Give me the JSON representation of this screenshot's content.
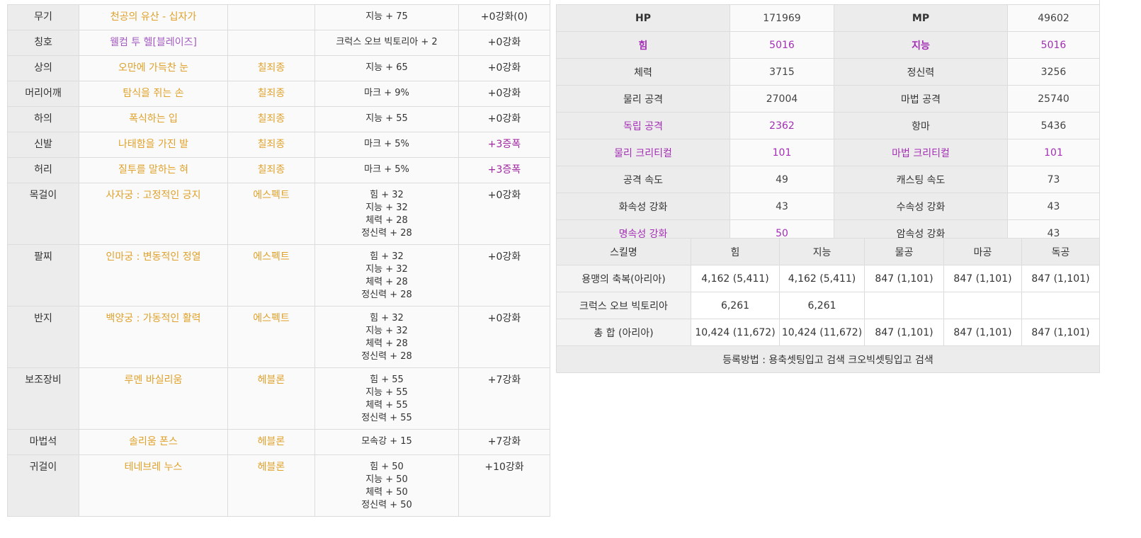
{
  "equipment": [
    {
      "slot": "무기",
      "item": "천공의 유산 - 십자가",
      "set": "",
      "options": [
        "지능 + 75"
      ],
      "upgrade": "+0강화(0)",
      "upgrade_purple": false,
      "title_style": false
    },
    {
      "slot": "칭호",
      "item": "웰컴 투 헬[블레이즈]",
      "set": "",
      "options": [
        "크럭스 오브 빅토리아 + 2"
      ],
      "upgrade": "+0강화",
      "upgrade_purple": false,
      "title_style": true
    },
    {
      "slot": "상의",
      "item": "오만에 가득찬 눈",
      "set": "칠죄종",
      "options": [
        "지능 + 65"
      ],
      "upgrade": "+0강화",
      "upgrade_purple": false,
      "title_style": false
    },
    {
      "slot": "머리어깨",
      "item": "탐식을 쥐는 손",
      "set": "칠죄종",
      "options": [
        "마크 + 9%"
      ],
      "upgrade": "+0강화",
      "upgrade_purple": false,
      "title_style": false
    },
    {
      "slot": "하의",
      "item": "폭식하는 입",
      "set": "칠죄종",
      "options": [
        "지능 + 55"
      ],
      "upgrade": "+0강화",
      "upgrade_purple": false,
      "title_style": false
    },
    {
      "slot": "신발",
      "item": "나태함을 가진 발",
      "set": "칠죄종",
      "options": [
        "마크 + 5%"
      ],
      "upgrade": "+3증폭",
      "upgrade_purple": true,
      "title_style": false
    },
    {
      "slot": "허리",
      "item": "질투를 말하는 혀",
      "set": "칠죄종",
      "options": [
        "마크 + 5%"
      ],
      "upgrade": "+3증폭",
      "upgrade_purple": true,
      "title_style": false
    },
    {
      "slot": "목걸이",
      "item": "사자궁 : 고정적인 긍지",
      "set": "에스펙트",
      "options": [
        "힘 + 32",
        "지능 + 32",
        "체력 + 28",
        "정신력 + 28"
      ],
      "upgrade": "+0강화",
      "upgrade_purple": false,
      "title_style": false
    },
    {
      "slot": "팔찌",
      "item": "인마궁 : 변동적인 정열",
      "set": "에스펙트",
      "options": [
        "힘 + 32",
        "지능 + 32",
        "체력 + 28",
        "정신력 + 28"
      ],
      "upgrade": "+0강화",
      "upgrade_purple": false,
      "title_style": false
    },
    {
      "slot": "반지",
      "item": "백양궁 : 가동적인 활력",
      "set": "에스펙트",
      "options": [
        "힘 + 32",
        "지능 + 32",
        "체력 + 28",
        "정신력 + 28"
      ],
      "upgrade": "+0강화",
      "upgrade_purple": false,
      "title_style": false
    },
    {
      "slot": "보조장비",
      "item": "루멘 바실리움",
      "set": "헤블론",
      "options": [
        "힘 + 55",
        "지능 + 55",
        "체력 + 55",
        "정신력 + 55"
      ],
      "upgrade": "+7강화",
      "upgrade_purple": false,
      "title_style": false
    },
    {
      "slot": "마법석",
      "item": "솔리움 폰스",
      "set": "헤블론",
      "options": [
        "모속강 + 15"
      ],
      "upgrade": "+7강화",
      "upgrade_purple": false,
      "title_style": false
    },
    {
      "slot": "귀걸이",
      "item": "테네브레 누스",
      "set": "헤블론",
      "options": [
        "힘 + 50",
        "지능 + 50",
        "체력 + 50",
        "정신력 + 50"
      ],
      "upgrade": "+10강화",
      "upgrade_purple": false,
      "title_style": false
    }
  ],
  "stats": [
    [
      {
        "label": "HP",
        "value": "171969",
        "hl": false,
        "bold": true
      },
      {
        "label": "MP",
        "value": "49602",
        "hl": false,
        "bold": true
      }
    ],
    [
      {
        "label": "힘",
        "value": "5016",
        "hl": true,
        "bold": true
      },
      {
        "label": "지능",
        "value": "5016",
        "hl": true,
        "bold": true
      }
    ],
    [
      {
        "label": "체력",
        "value": "3715",
        "hl": false,
        "bold": false
      },
      {
        "label": "정신력",
        "value": "3256",
        "hl": false,
        "bold": false
      }
    ],
    [
      {
        "label": "물리 공격",
        "value": "27004",
        "hl": false,
        "bold": false
      },
      {
        "label": "마법 공격",
        "value": "25740",
        "hl": false,
        "bold": false
      }
    ],
    [
      {
        "label": "독립 공격",
        "value": "2362",
        "hl": true,
        "bold": false
      },
      {
        "label": "항마",
        "value": "5436",
        "hl": false,
        "bold": false
      }
    ],
    [
      {
        "label": "물리 크리티컬",
        "value": "101",
        "hl": true,
        "bold": false
      },
      {
        "label": "마법 크리티컬",
        "value": "101",
        "hl": true,
        "bold": false
      }
    ],
    [
      {
        "label": "공격 속도",
        "value": "49",
        "hl": false,
        "bold": false
      },
      {
        "label": "캐스팅 속도",
        "value": "73",
        "hl": false,
        "bold": false
      }
    ],
    [
      {
        "label": "화속성 강화",
        "value": "43",
        "hl": false,
        "bold": false
      },
      {
        "label": "수속성 강화",
        "value": "43",
        "hl": false,
        "bold": false
      }
    ],
    [
      {
        "label": "명속성 강화",
        "value": "50",
        "hl": true,
        "bold": false
      },
      {
        "label": "암속성 강화",
        "value": "43",
        "hl": false,
        "bold": false
      }
    ]
  ],
  "skill_table": {
    "headers": [
      "스킬명",
      "힘",
      "지능",
      "물공",
      "마공",
      "독공"
    ],
    "rows": [
      [
        "용맹의 축복(아리아)",
        "4,162 (5,411)",
        "4,162 (5,411)",
        "847 (1,101)",
        "847 (1,101)",
        "847 (1,101)"
      ],
      [
        "크럭스 오브 빅토리아",
        "6,261",
        "6,261",
        "",
        "",
        ""
      ],
      [
        "총 합 (아리아)",
        "10,424 (11,672)",
        "10,424 (11,672)",
        "847 (1,101)",
        "847 (1,101)",
        "847 (1,101)"
      ]
    ],
    "footer": "등록방법 : 용축셋팅입고 검색 크오빅셋팅입고 검색"
  },
  "colors": {
    "item_gold": "#e0a12a",
    "purple": "#a32fb5",
    "title_purple": "#a45bc2",
    "label_bg": "#ececec"
  }
}
